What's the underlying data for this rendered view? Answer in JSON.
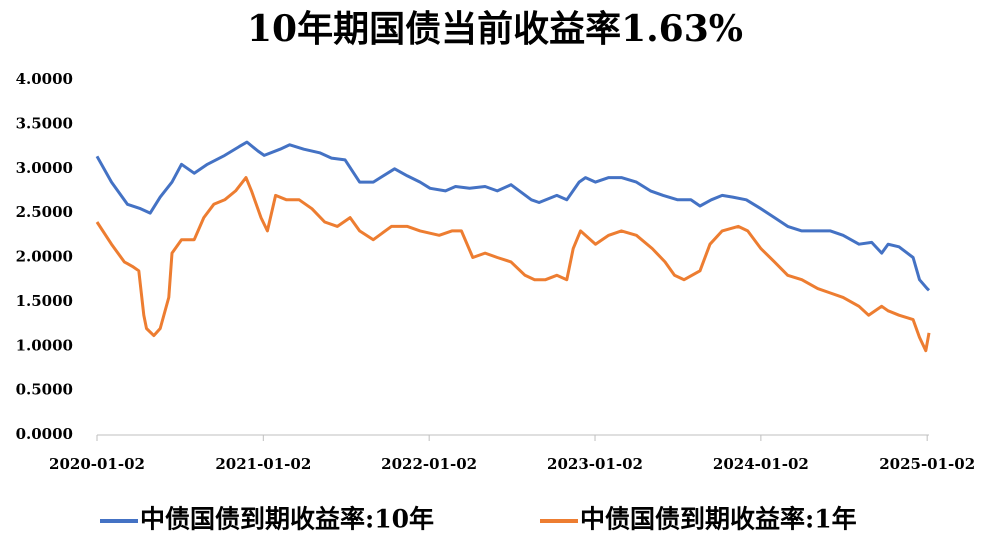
{
  "chart_data": {
    "type": "line",
    "title": "10年期国债当前收益率1.63%",
    "xlim": [
      "2020-01-02",
      "2025-01-06"
    ],
    "xticks": [
      "2020-01-02",
      "2021-01-02",
      "2022-01-02",
      "2023-01-02",
      "2024-01-02",
      "2025-01-02"
    ],
    "ylim": [
      0,
      4
    ],
    "yticks": [
      {
        "value": 0,
        "label": "0.0000"
      },
      {
        "value": 0.5,
        "label": "0.5000"
      },
      {
        "value": 1,
        "label": "1.0000"
      },
      {
        "value": 1.5,
        "label": "1.5000"
      },
      {
        "value": 2,
        "label": "2.0000"
      },
      {
        "value": 2.5,
        "label": "2.5000"
      },
      {
        "value": 3,
        "label": "3.0000"
      },
      {
        "value": 3.5,
        "label": "3.5000"
      },
      {
        "value": 4,
        "label": "4.0000"
      }
    ],
    "grid": false,
    "legend": "bottom",
    "series": [
      {
        "name": "中债国债到期收益率:10年",
        "color": "#4472c4",
        "x": [
          "2020-01-02",
          "2020-02-03",
          "2020-03-09",
          "2020-04-07",
          "2020-04-28",
          "2020-05-20",
          "2020-06-15",
          "2020-07-06",
          "2020-08-03",
          "2020-09-01",
          "2020-10-09",
          "2020-11-10",
          "2020-11-27",
          "2020-12-21",
          "2021-01-04",
          "2021-02-08",
          "2021-03-01",
          "2021-04-01",
          "2021-05-06",
          "2021-06-01",
          "2021-07-01",
          "2021-08-02",
          "2021-09-01",
          "2021-10-18",
          "2021-11-15",
          "2021-12-13",
          "2022-01-04",
          "2022-02-07",
          "2022-03-01",
          "2022-04-01",
          "2022-05-05",
          "2022-06-01",
          "2022-07-01",
          "2022-08-15",
          "2022-09-01",
          "2022-10-10",
          "2022-11-01",
          "2022-11-28",
          "2022-12-12",
          "2023-01-03",
          "2023-02-01",
          "2023-03-01",
          "2023-04-03",
          "2023-05-04",
          "2023-06-01",
          "2023-07-03",
          "2023-08-01",
          "2023-08-21",
          "2023-09-15",
          "2023-10-09",
          "2023-11-01",
          "2023-12-01",
          "2024-01-02",
          "2024-02-01",
          "2024-03-01",
          "2024-04-01",
          "2024-05-06",
          "2024-06-03",
          "2024-07-01",
          "2024-08-05",
          "2024-09-02",
          "2024-09-24",
          "2024-10-08",
          "2024-11-01",
          "2024-12-02",
          "2024-12-16",
          "2025-01-02",
          "2025-01-06"
        ],
        "values": [
          3.14,
          2.85,
          2.6,
          2.55,
          2.5,
          2.68,
          2.85,
          3.05,
          2.95,
          3.05,
          3.15,
          3.25,
          3.3,
          3.2,
          3.15,
          3.22,
          3.27,
          3.22,
          3.18,
          3.12,
          3.1,
          2.85,
          2.85,
          3.0,
          2.92,
          2.85,
          2.78,
          2.75,
          2.8,
          2.78,
          2.8,
          2.75,
          2.82,
          2.65,
          2.62,
          2.7,
          2.65,
          2.85,
          2.9,
          2.85,
          2.9,
          2.9,
          2.85,
          2.75,
          2.7,
          2.65,
          2.65,
          2.58,
          2.65,
          2.7,
          2.68,
          2.65,
          2.55,
          2.45,
          2.35,
          2.3,
          2.3,
          2.3,
          2.25,
          2.15,
          2.17,
          2.05,
          2.15,
          2.12,
          2.0,
          1.75,
          1.65,
          1.63
        ]
      },
      {
        "name": "中债国债到期收益率:1年",
        "color": "#ed7d31",
        "x": [
          "2020-01-02",
          "2020-02-03",
          "2020-03-02",
          "2020-03-20",
          "2020-04-03",
          "2020-04-14",
          "2020-04-20",
          "2020-05-06",
          "2020-05-20",
          "2020-06-08",
          "2020-06-15",
          "2020-07-06",
          "2020-08-03",
          "2020-08-24",
          "2020-09-15",
          "2020-10-09",
          "2020-11-02",
          "2020-11-25",
          "2020-12-07",
          "2020-12-28",
          "2021-01-11",
          "2021-01-29",
          "2021-02-22",
          "2021-03-22",
          "2021-04-19",
          "2021-05-17",
          "2021-06-14",
          "2021-07-12",
          "2021-08-02",
          "2021-09-01",
          "2021-10-11",
          "2021-11-15",
          "2021-12-13",
          "2022-01-24",
          "2022-02-21",
          "2022-03-14",
          "2022-04-08",
          "2022-05-05",
          "2022-06-01",
          "2022-07-01",
          "2022-08-01",
          "2022-08-22",
          "2022-09-15",
          "2022-10-10",
          "2022-11-01",
          "2022-11-15",
          "2022-12-01",
          "2023-01-03",
          "2023-02-01",
          "2023-03-01",
          "2023-04-03",
          "2023-05-08",
          "2023-06-05",
          "2023-06-26",
          "2023-07-17",
          "2023-08-21",
          "2023-09-12",
          "2023-10-09",
          "2023-11-13",
          "2023-12-04",
          "2024-01-02",
          "2024-02-01",
          "2024-03-01",
          "2024-04-01",
          "2024-05-06",
          "2024-06-03",
          "2024-07-01",
          "2024-08-05",
          "2024-08-26",
          "2024-09-24",
          "2024-10-08",
          "2024-11-01",
          "2024-12-02",
          "2024-12-16",
          "2024-12-30",
          "2025-01-06"
        ],
        "values": [
          2.4,
          2.15,
          1.95,
          1.9,
          1.85,
          1.35,
          1.2,
          1.12,
          1.2,
          1.55,
          2.05,
          2.2,
          2.2,
          2.45,
          2.6,
          2.65,
          2.75,
          2.9,
          2.75,
          2.45,
          2.3,
          2.7,
          2.65,
          2.65,
          2.55,
          2.4,
          2.35,
          2.45,
          2.3,
          2.2,
          2.35,
          2.35,
          2.3,
          2.25,
          2.3,
          2.3,
          2.0,
          2.05,
          2.0,
          1.95,
          1.8,
          1.75,
          1.75,
          1.8,
          1.75,
          2.1,
          2.3,
          2.15,
          2.25,
          2.3,
          2.25,
          2.1,
          1.95,
          1.8,
          1.75,
          1.85,
          2.15,
          2.3,
          2.35,
          2.3,
          2.1,
          1.95,
          1.8,
          1.75,
          1.65,
          1.6,
          1.55,
          1.45,
          1.35,
          1.45,
          1.4,
          1.35,
          1.3,
          1.1,
          0.95,
          1.15
        ]
      }
    ]
  }
}
